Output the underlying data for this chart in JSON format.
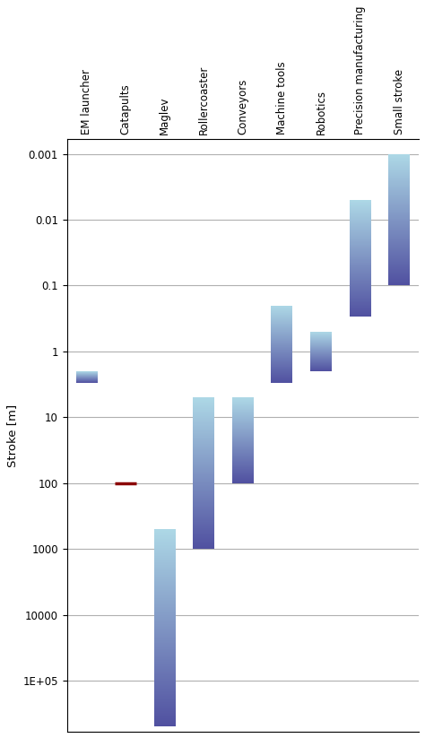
{
  "categories": [
    "EM launcher",
    "Catapults",
    "Maglev",
    "Rollercoaster",
    "Conveyors",
    "Machine tools",
    "Robotics",
    "Precision manufacturing",
    "Small stroke"
  ],
  "bar_ranges": [
    [
      2.0,
      3.0
    ],
    [
      100.0,
      100.0
    ],
    [
      500.0,
      500000.0
    ],
    [
      5.0,
      1000.0
    ],
    [
      5.0,
      100.0
    ],
    [
      0.2,
      3.0
    ],
    [
      0.5,
      2.0
    ],
    [
      0.005,
      0.3
    ],
    [
      0.001,
      0.1
    ]
  ],
  "is_line": [
    false,
    true,
    false,
    false,
    false,
    false,
    false,
    false,
    false
  ],
  "line_color": "#8B0000",
  "bar_color_light": "#ADD8E6",
  "bar_color_dark": "#5050A0",
  "ylabel": "Stroke [m]",
  "ylim_min": 0.0006,
  "ylim_max": 600000,
  "background_color": "#ffffff",
  "grid_color": "#b0b0b0",
  "bar_width": 0.55,
  "label_fontsize": 8.5,
  "ylabel_fontsize": 9.5,
  "yticks": [
    0.001,
    0.01,
    0.1,
    1,
    10,
    100,
    1000,
    10000,
    100000
  ],
  "ytick_labels": [
    "0.001",
    "0.01",
    "0.1",
    "1",
    "10",
    "100",
    "1000",
    "10000",
    "1E+05"
  ]
}
